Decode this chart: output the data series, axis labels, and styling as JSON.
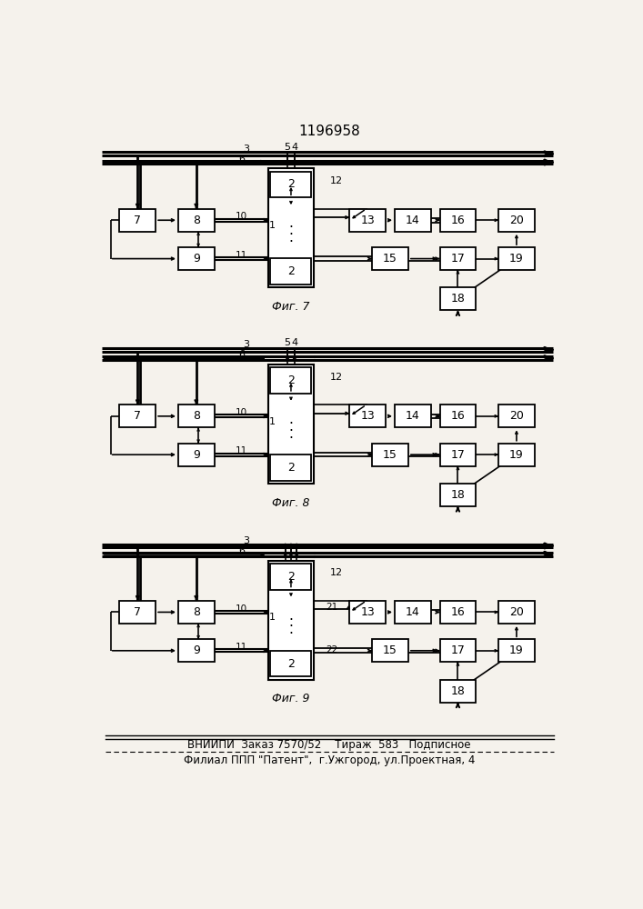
{
  "title": "1196958",
  "footer_line1": "ВНИИПИ  Заказ 7570/52    Тираж  583   Подписное",
  "footer_line2": "Филиал ППП \"Патент\",  г.Ужгород, ул.Проектная, 4",
  "fig_labels": [
    "Фиг. 7",
    "Фиг. 8",
    "Фиг. 9"
  ],
  "bg_color": "#f5f2ec"
}
